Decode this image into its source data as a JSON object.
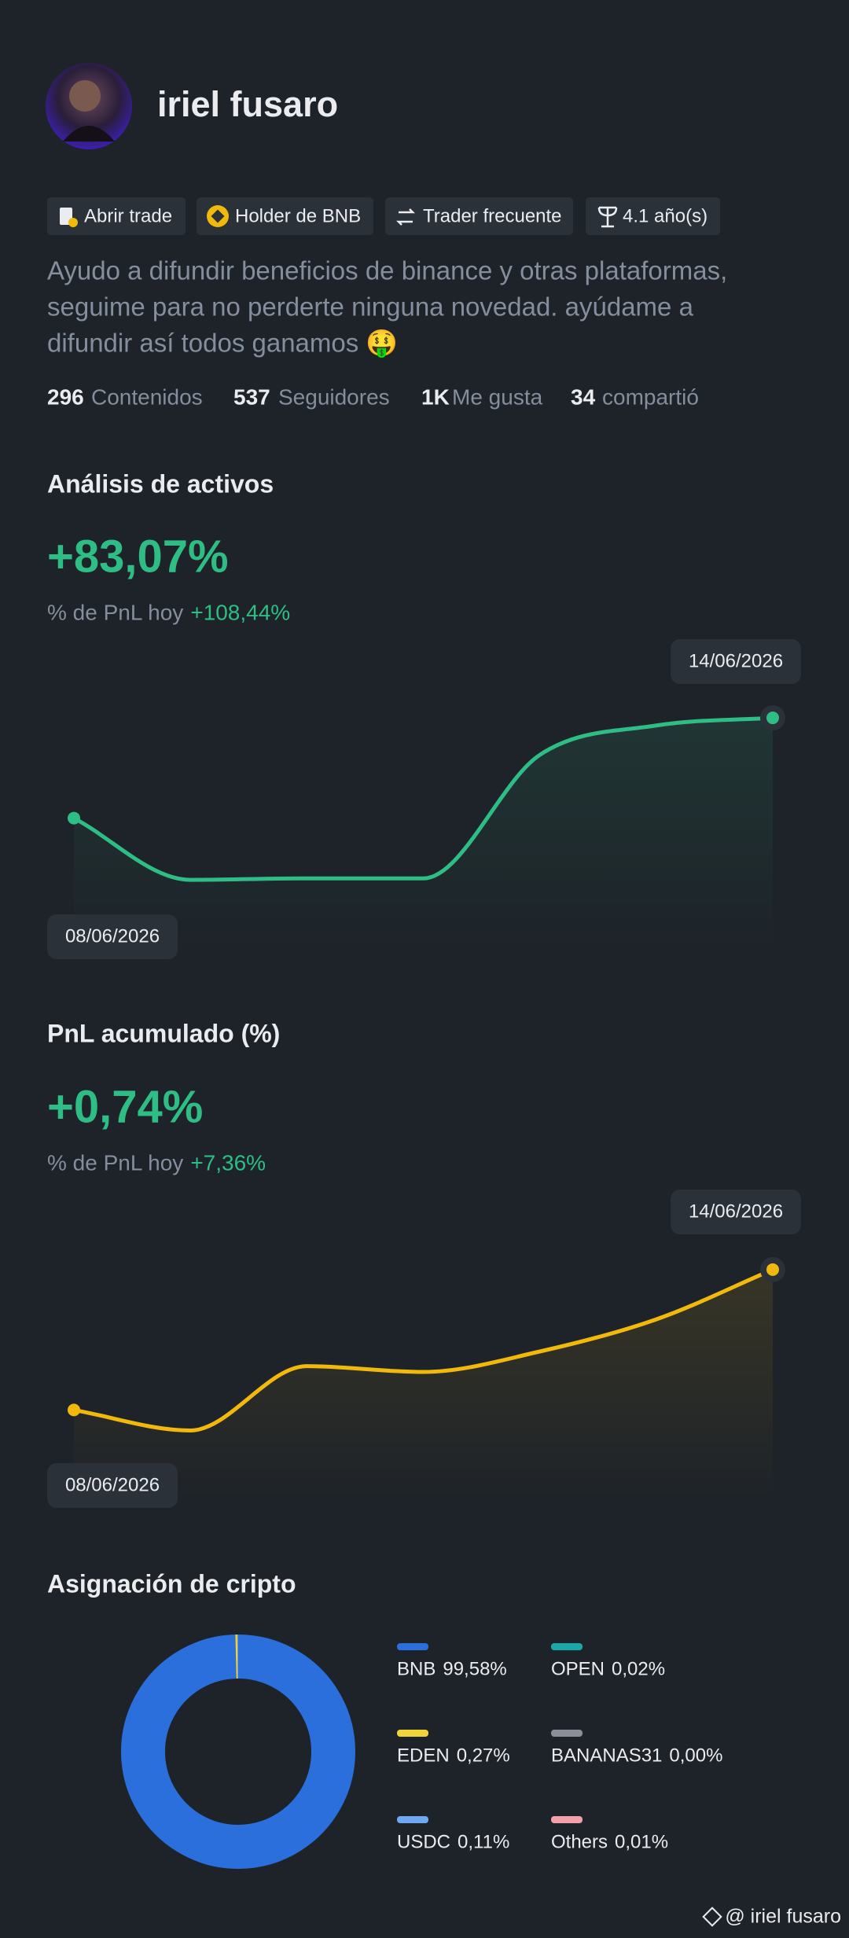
{
  "profile": {
    "name": "iriel fusaro",
    "badges": [
      "Abrir trade",
      "Holder de BNB",
      "Trader frecuente",
      "4.1 año(s)"
    ],
    "bio": [
      "Ayudo a difundir beneficios de binance y otras plataformas,",
      "seguime para no perderte ninguna novedad. ayúdame a",
      "difundir así todos ganamos 🤑"
    ],
    "stats": [
      {
        "value": "296",
        "label": "Contenidos"
      },
      {
        "value": "537",
        "label": "Seguidores"
      },
      {
        "value": "1K",
        "label": "Me gusta"
      },
      {
        "value": "34",
        "label": "compartió"
      }
    ],
    "footer": "@ iriel fusaro"
  },
  "chart_data": [
    {
      "type": "line",
      "title": "Análisis de activos",
      "headline": "+83,07%",
      "pnl_label": "% de PnL hoy",
      "pnl_today": "+108,44%",
      "categories": [
        "08/06/2026",
        null,
        null,
        null,
        null,
        null,
        "14/06/2026"
      ],
      "series": [
        {
          "color": "#2ebd85",
          "values": [
            44.5,
            23.5,
            24,
            24,
            66,
            76,
            78.6
          ]
        }
      ],
      "ylim": [
        0,
        100
      ]
    },
    {
      "type": "line",
      "title": "PnL acumulado (%)",
      "headline": "+0,74%",
      "pnl_label": "% de PnL hoy",
      "pnl_today": "+7,36%",
      "categories": [
        "08/06/2026",
        null,
        null,
        null,
        null,
        null,
        "14/06/2026"
      ],
      "series": [
        {
          "color": "#f0b90b",
          "values": [
            30,
            23,
            45,
            43,
            50,
            61,
            78
          ]
        }
      ],
      "ylim": [
        0,
        100
      ]
    },
    {
      "type": "donut",
      "title": "Asignación de cripto",
      "categories": [
        "BNB",
        "OPEN",
        "EDEN",
        "BANANAS31",
        "USDC",
        "Others"
      ],
      "values": [
        99.58,
        0.02,
        0.27,
        0.0,
        0.11,
        0.01
      ],
      "value_labels": [
        "99,58%",
        "0,02%",
        "0,27%",
        "0,00%",
        "0,11%",
        "0,01%"
      ],
      "colors": [
        "#2a6fdb",
        "#1ba8a8",
        "#f0d43a",
        "#8a8f98",
        "#6ea8f2",
        "#f4a0a8"
      ]
    }
  ]
}
